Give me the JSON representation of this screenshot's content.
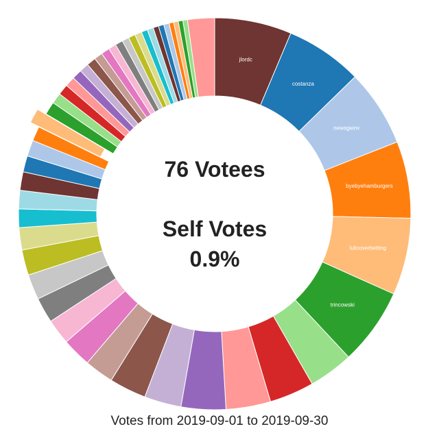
{
  "chart_data": {
    "type": "pie",
    "style": "donut",
    "center_lines": [
      "76 Votees",
      "Self Votes",
      "0.9%"
    ],
    "footer": "Votes from 2019-09-01 to 2019-09-30",
    "exploded_slice_color": "#ffbb78",
    "slices": [
      {
        "label": "jlordc",
        "value": 100,
        "color": "#6e3532"
      },
      {
        "label": "costanza",
        "value": 100,
        "color": "#1f77b4"
      },
      {
        "label": "newageinv",
        "value": 100,
        "color": "#aec7e8"
      },
      {
        "label": "byebyehamburgers",
        "value": 100,
        "color": "#ff7f0e"
      },
      {
        "label": "lulicoverbetting",
        "value": 100,
        "color": "#ffbb78"
      },
      {
        "label": "trincowski",
        "value": 100,
        "color": "#2ca02c"
      },
      {
        "label": "",
        "value": 58,
        "color": "#98df8a"
      },
      {
        "label": "",
        "value": 58,
        "color": "#d62728"
      },
      {
        "label": "",
        "value": 58,
        "color": "#ff9896"
      },
      {
        "label": "",
        "value": 58,
        "color": "#9467bd"
      },
      {
        "label": "",
        "value": 48,
        "color": "#c5b0d5"
      },
      {
        "label": "",
        "value": 48,
        "color": "#8c564b"
      },
      {
        "label": "",
        "value": 38,
        "color": "#c49c94"
      },
      {
        "label": "",
        "value": 38,
        "color": "#e377c2"
      },
      {
        "label": "",
        "value": 33,
        "color": "#f7b6d2"
      },
      {
        "label": "",
        "value": 33,
        "color": "#7f7f7f"
      },
      {
        "label": "",
        "value": 33,
        "color": "#c7c7c7"
      },
      {
        "label": "",
        "value": 33,
        "color": "#bcbd22"
      },
      {
        "label": "",
        "value": 29,
        "color": "#dbdb8d"
      },
      {
        "label": "",
        "value": 24,
        "color": "#17becf"
      },
      {
        "label": "",
        "value": 24,
        "color": "#9edae5"
      },
      {
        "label": "",
        "value": 24,
        "color": "#6e3532"
      },
      {
        "label": "",
        "value": 21,
        "color": "#1f77b4"
      },
      {
        "label": "",
        "value": 21,
        "color": "#aec7e8"
      },
      {
        "label": "",
        "value": 19,
        "color": "#ff7f0e"
      },
      {
        "label": "",
        "value": 19,
        "color": "#ffbb78"
      },
      {
        "label": "",
        "value": 17,
        "color": "#2ca02c"
      },
      {
        "label": "",
        "value": 14,
        "color": "#98df8a"
      },
      {
        "label": "",
        "value": 14,
        "color": "#d62728"
      },
      {
        "label": "",
        "value": 13,
        "color": "#ff9896"
      },
      {
        "label": "",
        "value": 13,
        "color": "#9467bd"
      },
      {
        "label": "",
        "value": 12,
        "color": "#c5b0d5"
      },
      {
        "label": "",
        "value": 12,
        "color": "#8c564b"
      },
      {
        "label": "",
        "value": 11,
        "color": "#c49c94"
      },
      {
        "label": "",
        "value": 11,
        "color": "#e377c2"
      },
      {
        "label": "",
        "value": 10,
        "color": "#f7b6d2"
      },
      {
        "label": "",
        "value": 10,
        "color": "#7f7f7f"
      },
      {
        "label": "",
        "value": 9,
        "color": "#c7c7c7"
      },
      {
        "label": "",
        "value": 9,
        "color": "#bcbd22"
      },
      {
        "label": "",
        "value": 9,
        "color": "#dbdb8d"
      },
      {
        "label": "",
        "value": 8,
        "color": "#17becf"
      },
      {
        "label": "",
        "value": 8,
        "color": "#9edae5"
      },
      {
        "label": "",
        "value": 7,
        "color": "#6e3532"
      },
      {
        "label": "",
        "value": 7,
        "color": "#1f77b4"
      },
      {
        "label": "",
        "value": 7,
        "color": "#aec7e8"
      },
      {
        "label": "",
        "value": 6,
        "color": "#ff7f0e"
      },
      {
        "label": "",
        "value": 6,
        "color": "#ffbb78"
      },
      {
        "label": "",
        "value": 6,
        "color": "#2ca02c"
      },
      {
        "label": "",
        "value": 6,
        "color": "#98df8a"
      },
      {
        "label": "",
        "value": 35,
        "color": "#ff9896"
      }
    ]
  }
}
